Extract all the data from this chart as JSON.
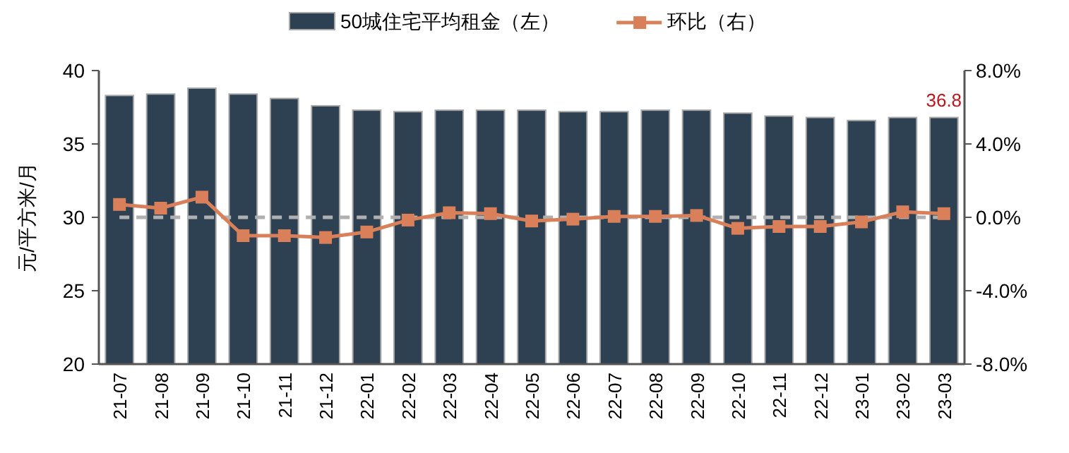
{
  "chart_data": {
    "type": "bar",
    "ylabel": "元/平方米/月",
    "categories": [
      "21-07",
      "21-08",
      "21-09",
      "21-10",
      "21-11",
      "21-12",
      "22-01",
      "22-02",
      "22-03",
      "22-04",
      "22-05",
      "22-06",
      "22-07",
      "22-08",
      "22-09",
      "22-10",
      "22-11",
      "22-12",
      "23-01",
      "23-02",
      "23-03"
    ],
    "series": [
      {
        "name": "50城住宅平均租金（左）",
        "color": "#2e4152",
        "values": [
          38.3,
          38.4,
          38.8,
          38.4,
          38.1,
          37.6,
          37.3,
          37.2,
          37.3,
          37.3,
          37.3,
          37.2,
          37.2,
          37.3,
          37.3,
          37.1,
          36.9,
          36.8,
          36.6,
          36.8,
          36.8
        ],
        "value_labels": [
          null,
          null,
          null,
          null,
          null,
          null,
          null,
          null,
          null,
          null,
          null,
          null,
          null,
          null,
          null,
          null,
          null,
          null,
          null,
          null,
          "36.8"
        ]
      },
      {
        "name": "环比（右）",
        "type": "line",
        "axis": "y2",
        "color": "#d9805a",
        "marker": "square",
        "values": [
          0.7,
          0.5,
          1.1,
          -1.0,
          -1.0,
          -1.1,
          -0.8,
          -0.15,
          0.25,
          0.2,
          -0.2,
          -0.1,
          0.05,
          0.05,
          0.1,
          -0.6,
          -0.5,
          -0.5,
          -0.25,
          0.3,
          0.2
        ]
      }
    ],
    "ylim": [
      20,
      40
    ],
    "yticks": [
      20,
      25,
      30,
      35,
      40
    ],
    "y2lim": [
      -8,
      8
    ],
    "y2ticks": [
      {
        "value": -8,
        "label": "-8.0%"
      },
      {
        "value": -4,
        "label": "-4.0%"
      },
      {
        "value": 0,
        "label": "0.0%"
      },
      {
        "value": 4,
        "label": "4.0%"
      },
      {
        "value": 8,
        "label": "8.0%"
      }
    ],
    "ref_lines": [
      {
        "axis": "y2",
        "value": 0,
        "color": "#b0b0b0",
        "line_style": "dashed"
      }
    ],
    "legend": "top",
    "grid": false
  }
}
